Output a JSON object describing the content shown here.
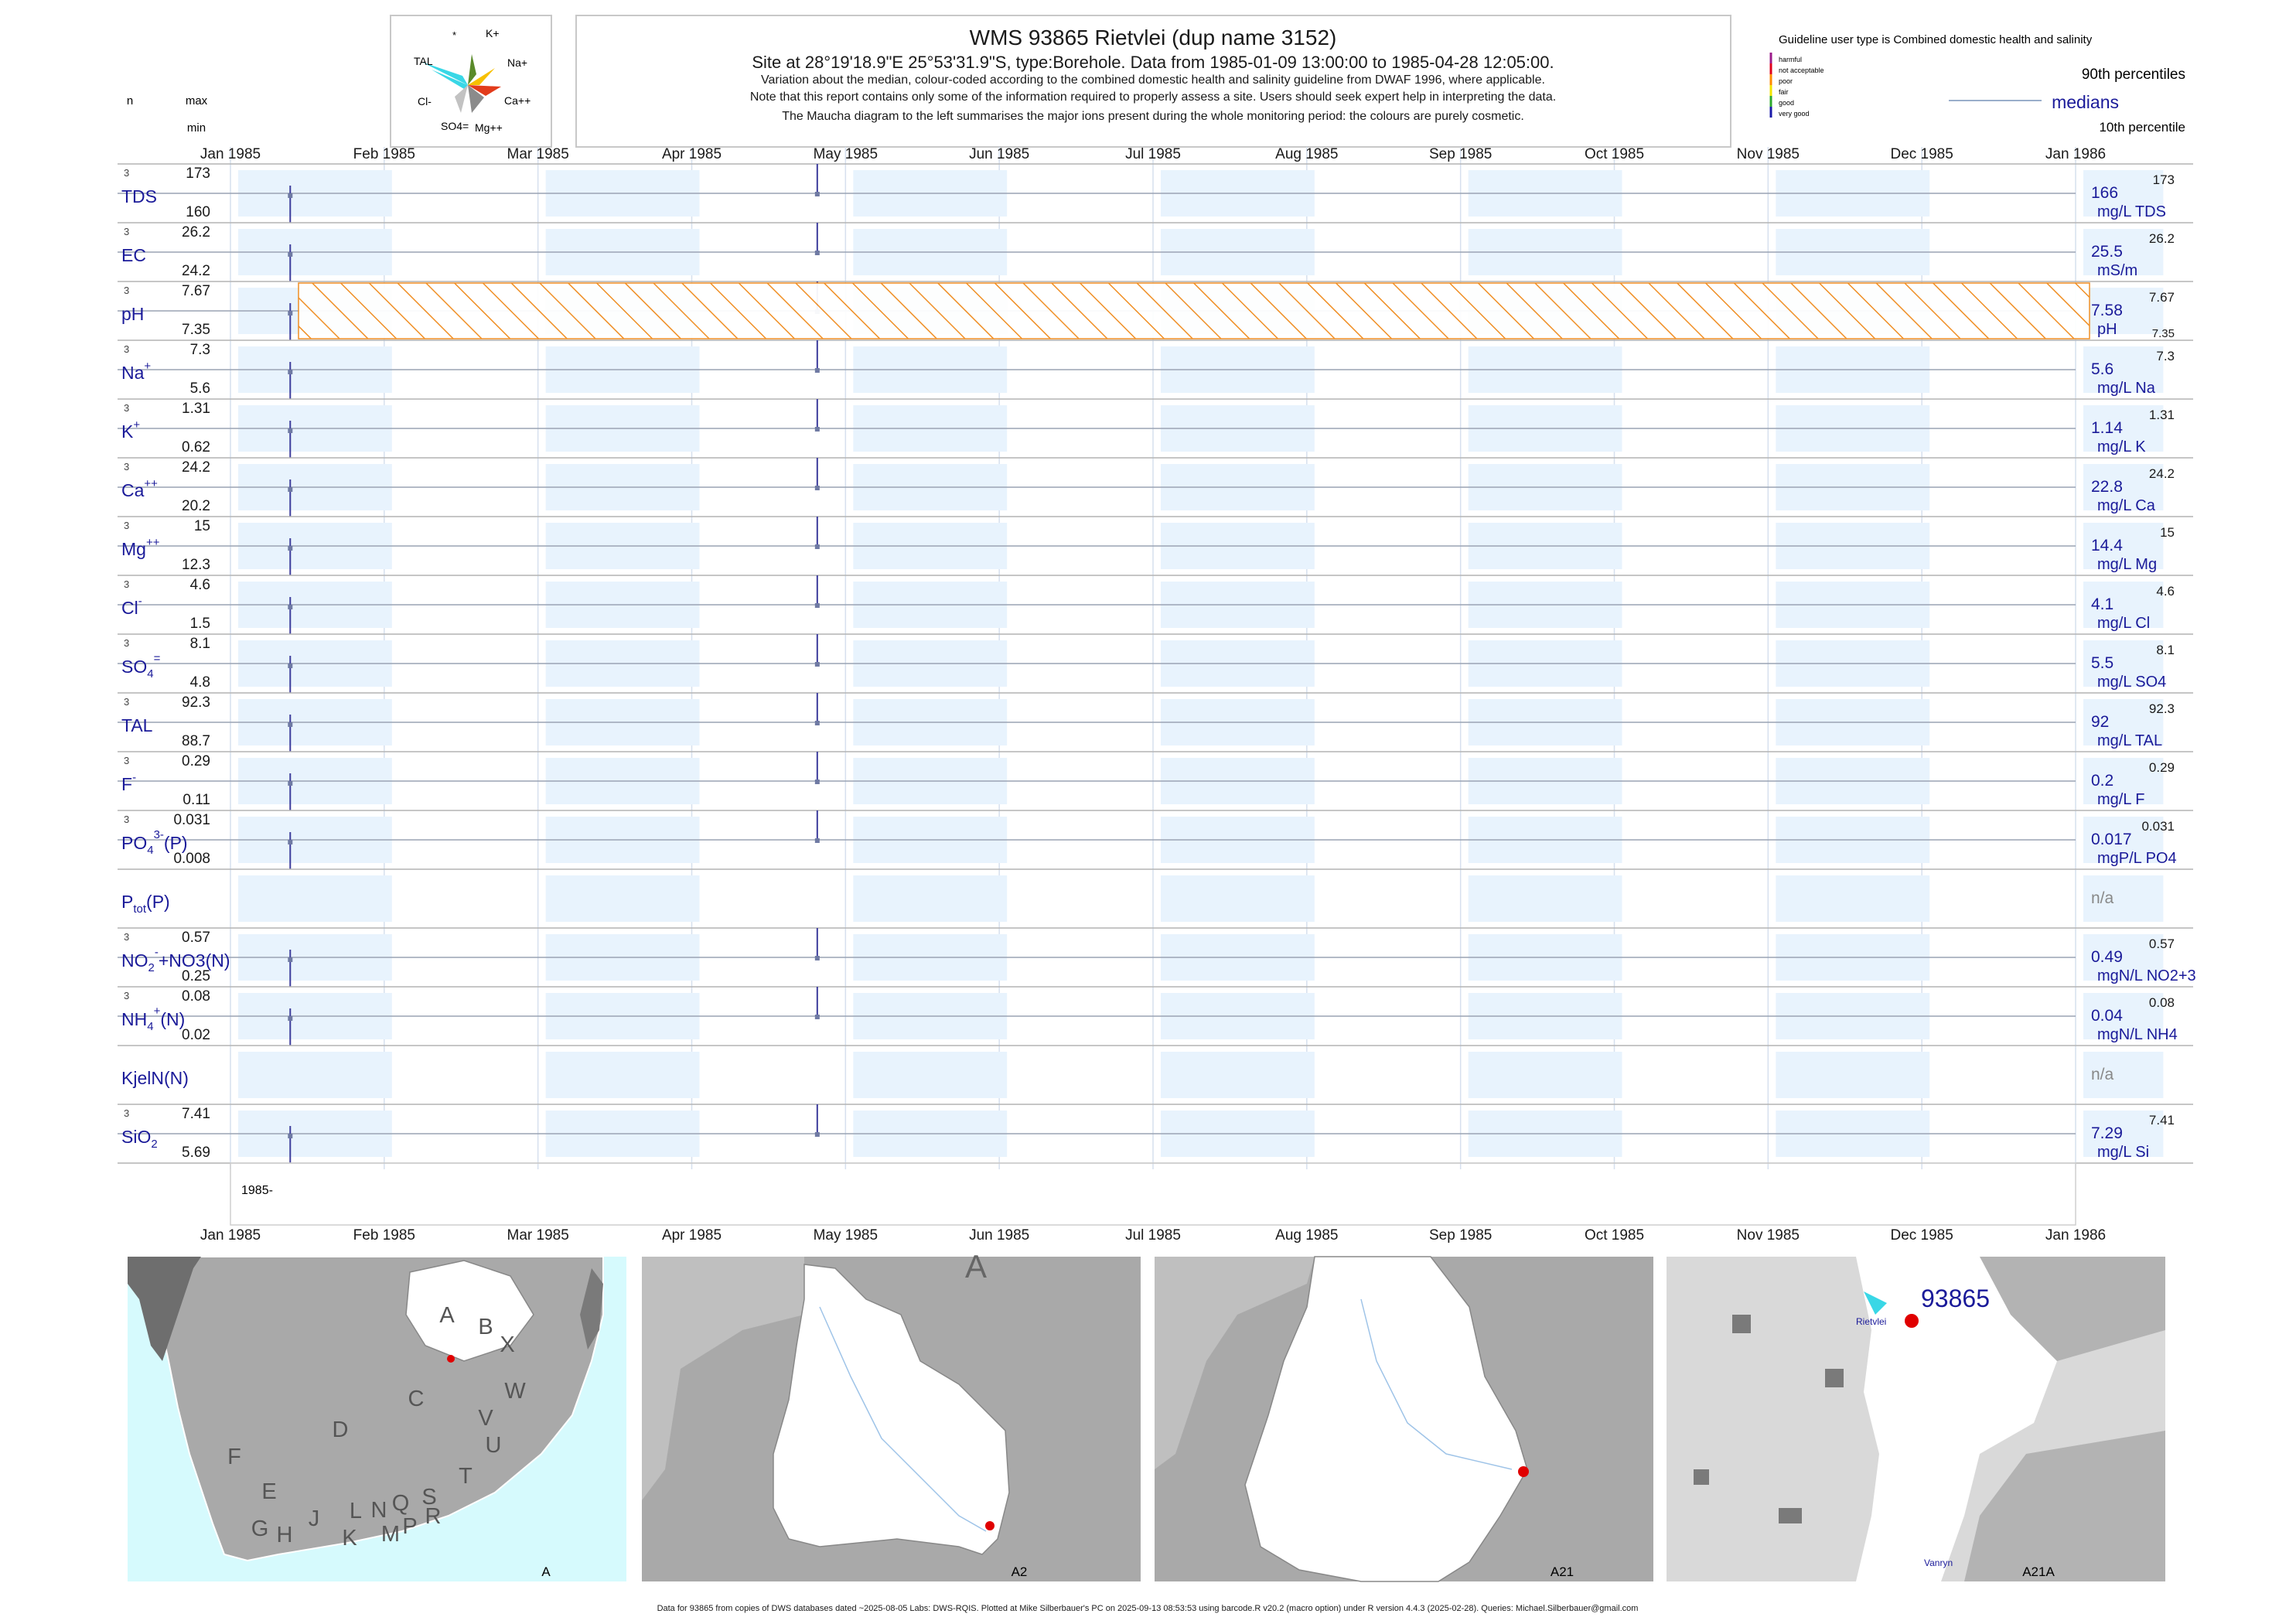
{
  "header": {
    "title": "WMS 93865  Rietvlei (dup name 3152)",
    "subtitle": "Site at 28°19'18.9\"E 25°53'31.9\"S, type:Borehole.  Data from 1985-01-09 13:00:00 to 1985-04-28 12:05:00.",
    "notes": [
      "Variation about the median,  colour-coded according to the combined domestic health and salinity guideline from DWAF 1996, where applicable.",
      "Note that this report contains only some of the information required to properly assess a site. Users should seek expert help in interpreting the data.",
      "The Maucha diagram to the left summarises the major ions present during the whole monitoring period: the colours are purely cosmetic."
    ],
    "col_n": "n",
    "col_max": "max",
    "col_min": "min"
  },
  "maucha": {
    "labels": [
      "*",
      "K+",
      "Na+",
      "Ca++",
      "Mg++",
      "SO4=",
      "Cl-",
      "TAL"
    ],
    "colors": {
      "tal": "#39d7e6",
      "na": "#f7c000",
      "ca": "#e23b1b",
      "mg": "#8b8b8b",
      "so4": "#c2c2c2",
      "k": "#5a8a2a"
    }
  },
  "legend": {
    "guideline": "Guideline user type is Combined domestic health and salinity",
    "categories": [
      {
        "label": "harmful",
        "color": "#9b1b8a"
      },
      {
        "label": "not acceptable",
        "color": "#e0001b"
      },
      {
        "label": "poor",
        "color": "#ff8a00"
      },
      {
        "label": "fair",
        "color": "#f2e400"
      },
      {
        "label": "good",
        "color": "#2ea82e"
      },
      {
        "label": "very good",
        "color": "#1a1aa8"
      }
    ],
    "p90": "90th percentiles",
    "median": "medians",
    "p10": "10th percentile"
  },
  "chart_data": {
    "type": "line",
    "x_range": [
      "1985-01-01",
      "1986-01-01"
    ],
    "months": [
      "Jan 1985",
      "Feb 1985",
      "Mar 1985",
      "Apr 1985",
      "May 1985",
      "Jun 1985",
      "Jul 1985",
      "Aug 1985",
      "Sep 1985",
      "Oct 1985",
      "Nov 1985",
      "Dec 1985",
      "Jan 1986"
    ],
    "sample_dates": [
      "1985-01-09",
      "1985-04-28"
    ],
    "year_label": "1985-",
    "guideline_band": {
      "variable": "pH",
      "range": [
        7.35,
        7.67
      ],
      "category": "poor"
    },
    "panels": [
      {
        "label": "TDS",
        "n": "3",
        "max": "173",
        "min": "160",
        "median": "166",
        "unit": "mg/L TDS",
        "p90": "173",
        "p10": ""
      },
      {
        "label": "EC",
        "n": "3",
        "max": "26.2",
        "min": "24.2",
        "median": "25.5",
        "unit": "mS/m",
        "p90": "26.2",
        "p10": ""
      },
      {
        "label": "pH",
        "n": "3",
        "max": "7.67",
        "min": "7.35",
        "median": "7.58",
        "unit": "pH",
        "p90": "7.67",
        "p10": "7.35"
      },
      {
        "label": "Na",
        "sup": "+",
        "n": "3",
        "max": "7.3",
        "min": "5.6",
        "median": "5.6",
        "unit": "mg/L Na",
        "p90": "7.3",
        "p10": ""
      },
      {
        "label": "K",
        "sup": "+",
        "n": "3",
        "max": "1.31",
        "min": "0.62",
        "median": "1.14",
        "unit": "mg/L K",
        "p90": "1.31",
        "p10": ""
      },
      {
        "label": "Ca",
        "sup": "++",
        "n": "3",
        "max": "24.2",
        "min": "20.2",
        "median": "22.8",
        "unit": "mg/L Ca",
        "p90": "24.2",
        "p10": ""
      },
      {
        "label": "Mg",
        "sup": "++",
        "n": "3",
        "max": "15",
        "min": "12.3",
        "median": "14.4",
        "unit": "mg/L Mg",
        "p90": "15",
        "p10": ""
      },
      {
        "label": "Cl",
        "sup": "-",
        "n": "3",
        "max": "4.6",
        "min": "1.5",
        "median": "4.1",
        "unit": "mg/L Cl",
        "p90": "4.6",
        "p10": ""
      },
      {
        "label": "SO",
        "sub": "4",
        "sup": "=",
        "n": "3",
        "max": "8.1",
        "min": "4.8",
        "median": "5.5",
        "unit": "mg/L SO4",
        "p90": "8.1",
        "p10": ""
      },
      {
        "label": "TAL",
        "n": "3",
        "max": "92.3",
        "min": "88.7",
        "median": "92",
        "unit": "mg/L TAL",
        "p90": "92.3",
        "p10": ""
      },
      {
        "label": "F",
        "sup": "-",
        "n": "3",
        "max": "0.29",
        "min": "0.11",
        "median": "0.2",
        "unit": "mg/L F",
        "p90": "0.29",
        "p10": ""
      },
      {
        "label": "PO",
        "sub": "4",
        "sup": "3-",
        "tail": "(P)",
        "n": "3",
        "max": "0.031",
        "min": "0.008",
        "median": "0.017",
        "unit": "mgP/L PO4",
        "p90": "0.031",
        "p10": ""
      },
      {
        "label": "P",
        "sub": "tot",
        "tail": "(P)",
        "n": "",
        "max": "",
        "min": "",
        "median": "n/a",
        "unit": "",
        "p90": "",
        "p10": ""
      },
      {
        "label": "NO",
        "sub": "2",
        "sup": "-",
        "tail": "+NO3(N)",
        "n": "3",
        "max": "0.57",
        "min": "0.25",
        "median": "0.49",
        "unit": "mgN/L NO2+3",
        "p90": "0.57",
        "p10": ""
      },
      {
        "label": "NH",
        "sub": "4",
        "sup": "+",
        "tail": "(N)",
        "n": "3",
        "max": "0.08",
        "min": "0.02",
        "median": "0.04",
        "unit": "mgN/L NH4",
        "p90": "0.08",
        "p10": ""
      },
      {
        "label": "KjelN(N)",
        "n": "",
        "max": "",
        "min": "",
        "median": "n/a",
        "unit": "",
        "p90": "",
        "p10": ""
      },
      {
        "label": "SiO",
        "sub": "2",
        "n": "3",
        "max": "7.41",
        "min": "5.69",
        "median": "7.29",
        "unit": "mg/L Si",
        "p90": "7.41",
        "p10": ""
      }
    ]
  },
  "maps": [
    {
      "label": "A",
      "letters": [
        "A",
        "B",
        "X",
        "W",
        "C",
        "V",
        "U",
        "D",
        "T",
        "F",
        "E",
        "G",
        "H",
        "J",
        "K",
        "L",
        "M",
        "N",
        "P",
        "Q",
        "R",
        "S"
      ]
    },
    {
      "label": "A2",
      "letters": [
        "A"
      ]
    },
    {
      "label": "A21",
      "letters": []
    },
    {
      "label": "A21A",
      "letters": [],
      "site": "93865",
      "place1": "Rietvlei",
      "place2": "Vanryn"
    }
  ],
  "footer": "Data for 93865 from copies of DWS databases dated ~2025-08-05 Labs: DWS-RQIS. Plotted at Mike Silberbauer's PC on 2025-09-13 08:53:53 using barcode.R v20.2 (macro option) under R version 4.4.3 (2025-02-28). Queries: Michael.Silberbauer@gmail.com"
}
